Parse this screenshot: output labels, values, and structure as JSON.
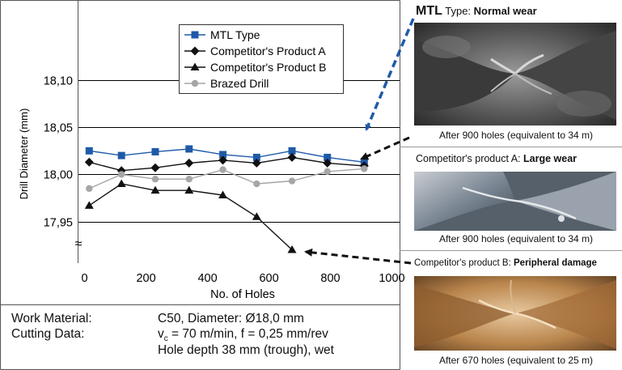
{
  "chart_data": {
    "type": "line",
    "x": [
      15,
      120,
      230,
      340,
      450,
      560,
      675,
      790,
      910
    ],
    "xlabel": "No. of Holes",
    "ylabel": "Drill Diameter (mm)",
    "xticks": [
      "0",
      "200",
      "400",
      "600",
      "800",
      "1000"
    ],
    "xtick_values": [
      0,
      200,
      400,
      600,
      800,
      1000
    ],
    "xlim": [
      -20,
      1025
    ],
    "yticks": [
      "18,10",
      "18,05",
      "18,00",
      "17,95"
    ],
    "ytick_values": [
      18.1,
      18.05,
      18.0,
      17.95
    ],
    "ylim": [
      17.905,
      18.185
    ],
    "axis_break_symbol": "≈",
    "grid": "horizontal",
    "legend_position": "top-right",
    "series": [
      {
        "name": "MTL Type",
        "color": "#1f5aa8",
        "marker": "square",
        "x": [
          15,
          120,
          230,
          340,
          450,
          560,
          675,
          790,
          910
        ],
        "values": [
          18.025,
          18.02,
          18.024,
          18.027,
          18.021,
          18.018,
          18.025,
          18.018,
          18.013
        ]
      },
      {
        "name": "Competitor's Product A",
        "color": "#111111",
        "marker": "diamond",
        "x": [
          15,
          120,
          230,
          340,
          450,
          560,
          675,
          790,
          910
        ],
        "values": [
          18.013,
          18.004,
          18.007,
          18.012,
          18.015,
          18.012,
          18.018,
          18.012,
          18.009
        ]
      },
      {
        "name": "Competitor's Product B",
        "color": "#111111",
        "marker": "triangle",
        "x": [
          15,
          120,
          230,
          340,
          450,
          560,
          675
        ],
        "values": [
          17.967,
          17.99,
          17.983,
          17.983,
          17.978,
          17.955,
          17.92
        ]
      },
      {
        "name": "Brazed Drill",
        "color": "#a6a6a6",
        "marker": "circle",
        "x": [
          15,
          120,
          230,
          340,
          450,
          560,
          675,
          790,
          910
        ],
        "values": [
          17.985,
          18.0,
          17.995,
          17.995,
          18.005,
          17.99,
          17.993,
          18.003,
          18.006
        ]
      }
    ]
  },
  "work": {
    "material_label": "Work Material:",
    "material_value": "C50,   Diameter: Ø18,0 mm",
    "cutting_label": "Cutting Data:",
    "cutting_v": "v",
    "cutting_sub": "c",
    "cutting_rest": " = 70 m/min, f = 0,25 mm/rev",
    "depth": "Hole depth 38 mm (trough), wet"
  },
  "panels": [
    {
      "prefix": "MTL",
      "middle": " Type:  ",
      "bold": "Normal wear",
      "caption": "After 900 holes (equivalent to 34 m)",
      "tone": "#3b3b3b"
    },
    {
      "prefix": "",
      "middle": "Competitor's product A: ",
      "bold": "Large wear",
      "caption": "After 900 holes (equivalent to 34 m)",
      "tone": "#4a5a6a"
    },
    {
      "prefix": "",
      "middle": "Competitor's product B: ",
      "bold": "Peripheral damage",
      "caption": "After 670 holes (equivalent to 25 m)",
      "tone": "#8a5a30"
    }
  ],
  "colors": {
    "accent": "#1f5aa8",
    "grid": "#000000",
    "border": "#555555"
  }
}
